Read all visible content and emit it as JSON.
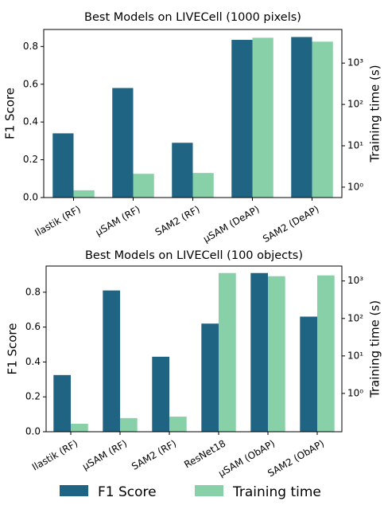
{
  "chart_data": [
    {
      "type": "bar",
      "title": "Best Models on LIVECell (1000 pixels)",
      "y_label": "F1 Score",
      "y2_label": "Training time (s)",
      "categories": [
        "Ilastik (RF)",
        "μSAM (RF)",
        "SAM2 (RF)",
        "μSAM (DeAP)",
        "SAM2 (DeAP)"
      ],
      "series": [
        {
          "name": "F1 Score",
          "color": "#1f6482",
          "values": [
            0.34,
            0.58,
            0.29,
            0.835,
            0.85
          ]
        },
        {
          "name": "Training time",
          "color": "#88d1a8",
          "axis": "y2",
          "values": [
            0.84,
            2.1,
            2.2,
            4100,
            3300
          ]
        }
      ],
      "ylim": [
        0,
        0.89
      ],
      "yticks": [
        {
          "value": 0,
          "label": "0.0"
        },
        {
          "value": 0.2,
          "label": "0.2"
        },
        {
          "value": 0.4,
          "label": "0.4"
        },
        {
          "value": 0.6,
          "label": "0.6"
        },
        {
          "value": 0.8,
          "label": "0.8"
        }
      ],
      "y2lim": [
        0.56,
        6500
      ],
      "y2_log": true,
      "y2ticks": [
        {
          "value": 1,
          "label": "10⁰"
        },
        {
          "value": 10,
          "label": "10¹"
        },
        {
          "value": 100,
          "label": "10²"
        },
        {
          "value": 1000,
          "label": "10³"
        }
      ]
    },
    {
      "type": "bar",
      "title": "Best Models on LIVECell (100 objects)",
      "y_label": "F1 Score",
      "y2_label": "Training time (s)",
      "categories": [
        "Ilastik (RF)",
        "μSAM (RF)",
        "SAM2 (RF)",
        "ResNet18",
        "μSAM (ObAP)",
        "SAM2 (ObAP)"
      ],
      "series": [
        {
          "name": "F1 Score",
          "color": "#1f6482",
          "values": [
            0.325,
            0.81,
            0.43,
            0.62,
            0.91,
            0.66
          ]
        },
        {
          "name": "Training time",
          "color": "#88d1a8",
          "axis": "y2",
          "values": [
            0.155,
            0.22,
            0.24,
            1630,
            1340,
            1410
          ]
        }
      ],
      "ylim": [
        0,
        0.95
      ],
      "yticks": [
        {
          "value": 0,
          "label": "0.0"
        },
        {
          "value": 0.2,
          "label": "0.2"
        },
        {
          "value": 0.4,
          "label": "0.4"
        },
        {
          "value": 0.6,
          "label": "0.6"
        },
        {
          "value": 0.8,
          "label": "0.8"
        }
      ],
      "y2lim": [
        0.095,
        2500
      ],
      "y2_log": true,
      "y2ticks": [
        {
          "value": 1,
          "label": "10⁰"
        },
        {
          "value": 10,
          "label": "10¹"
        },
        {
          "value": 100,
          "label": "10²"
        },
        {
          "value": 1000,
          "label": "10³"
        }
      ]
    }
  ]
}
